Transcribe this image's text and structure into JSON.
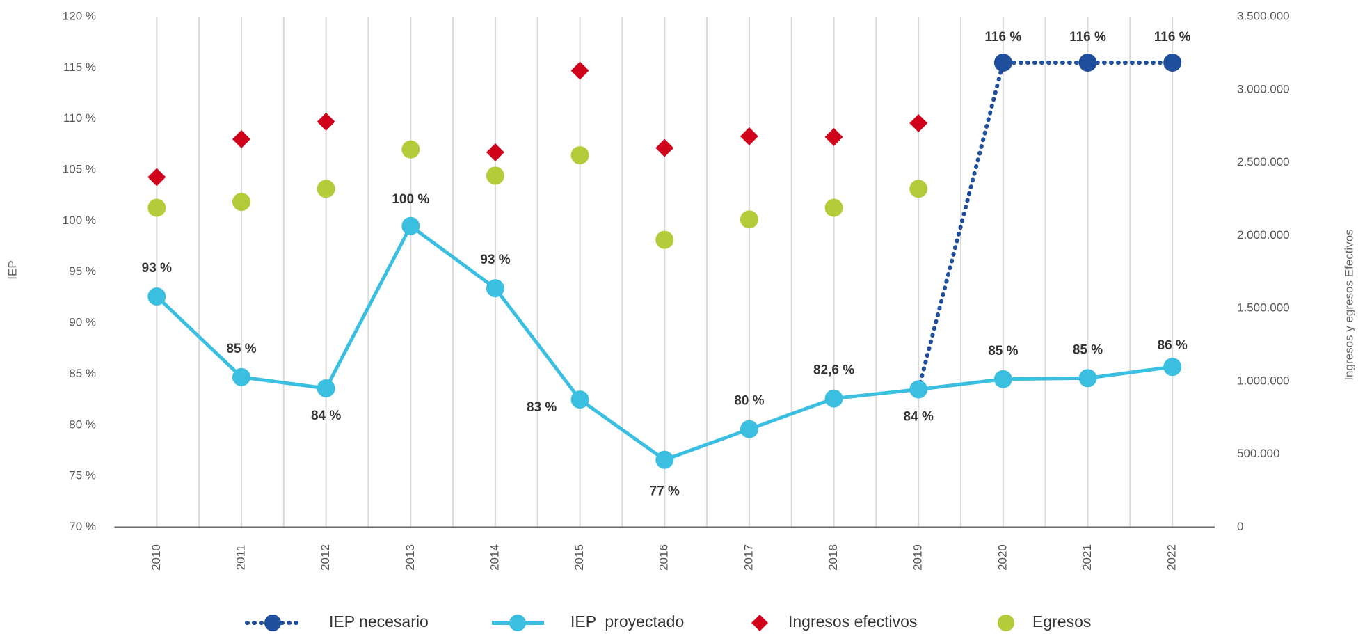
{
  "chart_data": {
    "type": "line",
    "y_axis_label": "IEP",
    "y2_axis_label": "Ingresos y egresos Efectivos",
    "categories": [
      "2010",
      "2011",
      "2012",
      "2013",
      "2014",
      "2015",
      "2016",
      "2017",
      "2018",
      "2019",
      "2020",
      "2021",
      "2022"
    ],
    "ylim": [
      70,
      120
    ],
    "yticks": [
      {
        "value": 70,
        "label": "70 %"
      },
      {
        "value": 75,
        "label": "75 %"
      },
      {
        "value": 80,
        "label": "80 %"
      },
      {
        "value": 85,
        "label": "85 %"
      },
      {
        "value": 90,
        "label": "90 %"
      },
      {
        "value": 95,
        "label": "95 %"
      },
      {
        "value": 100,
        "label": "100 %"
      },
      {
        "value": 105,
        "label": "105 %"
      },
      {
        "value": 110,
        "label": "110 %"
      },
      {
        "value": 115,
        "label": "115 %"
      },
      {
        "value": 120,
        "label": "120 %"
      }
    ],
    "y2lim": [
      0,
      3500000
    ],
    "y2ticks": [
      0,
      {
        "value": 500000,
        "label": "500.000"
      },
      {
        "value": 1000000,
        "label": "1.000.000"
      },
      {
        "value": 1500000,
        "label": "1.500.000"
      },
      {
        "value": 2000000,
        "label": "2.000.000"
      },
      {
        "value": 2500000,
        "label": "2.500.000"
      },
      {
        "value": 3000000,
        "label": "3.000.000"
      },
      {
        "value": 3500000,
        "label": "3.500.000"
      }
    ],
    "series": [
      {
        "name": "IEP necesario",
        "color": "#1f4e9c",
        "style": "dotted",
        "values": [
          null,
          null,
          null,
          null,
          null,
          null,
          null,
          null,
          null,
          83.5,
          115.5,
          115.5,
          115.5
        ],
        "value_labels": [
          null,
          null,
          null,
          null,
          null,
          null,
          null,
          null,
          null,
          null,
          "116 %",
          "116 %",
          "116 %"
        ]
      },
      {
        "name": "IEP  proyectado",
        "color": "#3bbfe0",
        "style": "solid",
        "values": [
          92.6,
          84.7,
          83.6,
          99.5,
          93.4,
          82.5,
          76.6,
          79.6,
          82.6,
          83.5,
          84.5,
          84.6,
          85.7
        ],
        "value_labels": [
          "93 %",
          "85 %",
          "84 %",
          "100 %",
          "93 %",
          "83 %",
          "77 %",
          "80 %",
          "82,6 %",
          "84 %",
          "85 %",
          "85 %",
          "86 %"
        ]
      },
      {
        "name": "Ingresos efectivos",
        "color": "#d0021b",
        "style": "diamond",
        "axis": "y2",
        "values": [
          2400000,
          2660000,
          2780000,
          null,
          2570000,
          3130000,
          2600000,
          2680000,
          2675000,
          2770000,
          null,
          null,
          null
        ]
      },
      {
        "name": "Egresos",
        "color": "#b5cc3a",
        "style": "circle",
        "axis": "y2",
        "values": [
          2190000,
          2230000,
          2320000,
          2590000,
          2410000,
          2550000,
          1970000,
          2110000,
          2190000,
          2320000,
          null,
          null,
          null
        ]
      }
    ]
  }
}
